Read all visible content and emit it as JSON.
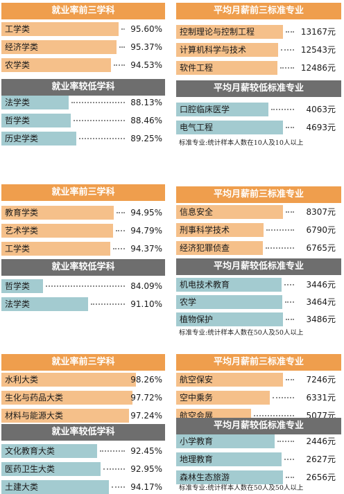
{
  "colors": {
    "top_header": "#ef9e4d",
    "top_bar": "#f5c08a",
    "low_header": "#6e6e6e",
    "low_bar": "#a3cbd0"
  },
  "watermark": "",
  "chart_data": [
    {
      "type": "bar",
      "title": "就业率前三学科",
      "kind": "top",
      "unit": "%",
      "ylim": [
        0,
        100
      ],
      "categories": [
        "工学类",
        "经济学类",
        "农学类"
      ],
      "values": [
        95.6,
        95.37,
        94.53
      ],
      "value_labels": [
        "95.60%",
        "95.37%",
        "94.53%"
      ]
    },
    {
      "type": "bar",
      "title": "平均月薪前三标准专业",
      "kind": "top",
      "unit": "元",
      "categories": [
        "控制理论与控制工程",
        "计算机科学与技术",
        "软件工程"
      ],
      "values": [
        13167,
        12543,
        12486
      ],
      "value_labels": [
        "13167元",
        "12543元",
        "12486元"
      ]
    },
    {
      "type": "bar",
      "title": "就业率较低学科",
      "kind": "low",
      "unit": "%",
      "ylim": [
        0,
        100
      ],
      "categories": [
        "法学类",
        "哲学类",
        "历史学类"
      ],
      "values": [
        88.13,
        88.46,
        89.25
      ],
      "value_labels": [
        "88.13%",
        "88.46%",
        "89.25%"
      ]
    },
    {
      "type": "bar",
      "title": "平均月薪较低标准专业",
      "kind": "low",
      "unit": "元",
      "categories": [
        "口腔临床医学",
        "电气工程"
      ],
      "values": [
        4063,
        4693
      ],
      "value_labels": [
        "4063元",
        "4693元"
      ],
      "note": "标准专业:统计样本人数在10人及10人以上"
    },
    {
      "type": "bar",
      "title": "就业率前三学科",
      "kind": "top",
      "unit": "%",
      "ylim": [
        0,
        100
      ],
      "categories": [
        "教育学类",
        "艺术学类",
        "工学类"
      ],
      "values": [
        94.95,
        94.79,
        94.37
      ],
      "value_labels": [
        "94.95%",
        "94.79%",
        "94.37%"
      ]
    },
    {
      "type": "bar",
      "title": "平均月薪前三标准专业",
      "kind": "top",
      "unit": "元",
      "categories": [
        "信息安全",
        "刑事科学技术",
        "经济犯罪侦查"
      ],
      "values": [
        8307,
        6790,
        6765
      ],
      "value_labels": [
        "8307元",
        "6790元",
        "6765元"
      ]
    },
    {
      "type": "bar",
      "title": "就业率较低学科",
      "kind": "low",
      "unit": "%",
      "ylim": [
        0,
        100
      ],
      "categories": [
        "哲学类",
        "法学类"
      ],
      "values": [
        84.09,
        91.1
      ],
      "value_labels": [
        "84.09%",
        "91.10%"
      ]
    },
    {
      "type": "bar",
      "title": "平均月薪较低标准专业",
      "kind": "low",
      "unit": "元",
      "categories": [
        "机电技术教育",
        "农学",
        "植物保护"
      ],
      "values": [
        3446,
        3464,
        3486
      ],
      "value_labels": [
        "3446元",
        "3464元",
        "3486元"
      ],
      "note": "标准专业:统计样本人数在50人及50人以上"
    },
    {
      "type": "bar",
      "title": "就业率前三学科",
      "kind": "top",
      "unit": "%",
      "ylim": [
        0,
        100
      ],
      "categories": [
        "水利大类",
        "生化与药品大类",
        "材料与能源大类"
      ],
      "values": [
        98.26,
        97.72,
        97.24
      ],
      "value_labels": [
        "98.26%",
        "97.72%",
        "97.24%"
      ]
    },
    {
      "type": "bar",
      "title": "平均月薪前三标准专业",
      "kind": "top",
      "unit": "元",
      "categories": [
        "航空保安",
        "空中乘务",
        "航空会展"
      ],
      "values": [
        7246,
        6331,
        5077
      ],
      "value_labels": [
        "7246元",
        "6331元",
        "5077元"
      ]
    },
    {
      "type": "bar",
      "title": "就业率较低学科",
      "kind": "low",
      "unit": "%",
      "ylim": [
        0,
        100
      ],
      "categories": [
        "文化教育大类",
        "医药卫生大类",
        "土建大类"
      ],
      "values": [
        92.45,
        92.95,
        94.17
      ],
      "value_labels": [
        "92.45%",
        "92.95%",
        "94.17%"
      ]
    },
    {
      "type": "bar",
      "title": "平均月薪较低标准专业",
      "kind": "low",
      "unit": "元",
      "categories": [
        "小学教育",
        "地理教育",
        "森林生态旅游"
      ],
      "values": [
        2446,
        2627,
        2656
      ],
      "value_labels": [
        "2446元",
        "2627元",
        "2656元"
      ],
      "note": "标准专业:统计样本人数在50人及50人以上"
    }
  ]
}
